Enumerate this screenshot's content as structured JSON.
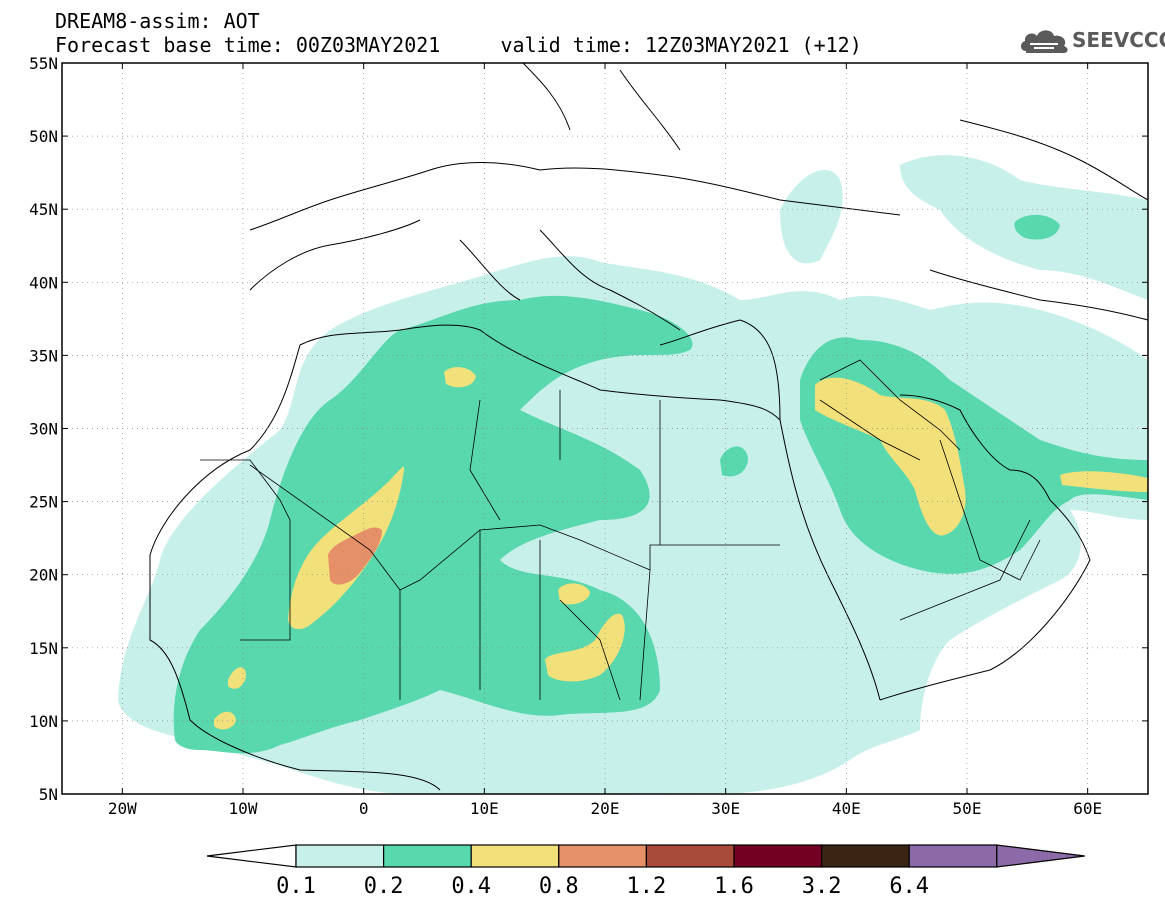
{
  "header": {
    "line1": "DREAM8-assim: AOT",
    "line2": "Forecast base time: 00Z03MAY2021     valid time: 12Z03MAY2021 (+12)"
  },
  "logo": {
    "text": "SEEVCCC",
    "icon": "cloud-logo-icon"
  },
  "map": {
    "lat_labels": [
      "55N",
      "50N",
      "45N",
      "40N",
      "35N",
      "30N",
      "25N",
      "20N",
      "15N",
      "10N",
      "5N"
    ],
    "lon_labels": [
      "20W",
      "10W",
      "0",
      "10E",
      "20E",
      "30E",
      "40E",
      "50E",
      "60E"
    ],
    "lat_range": [
      5,
      55
    ],
    "lon_range": [
      -25,
      65
    ]
  },
  "colorbar": {
    "labels": [
      "0.1",
      "0.2",
      "0.4",
      "0.8",
      "1.2",
      "1.6",
      "3.2",
      "6.4"
    ],
    "colors": [
      "#ffffff",
      "#c8f0eb",
      "#5ad8ad",
      "#f2e07a",
      "#e59068",
      "#a84a3a",
      "#730022",
      "#3a2412",
      "#8c6aa8"
    ]
  }
}
